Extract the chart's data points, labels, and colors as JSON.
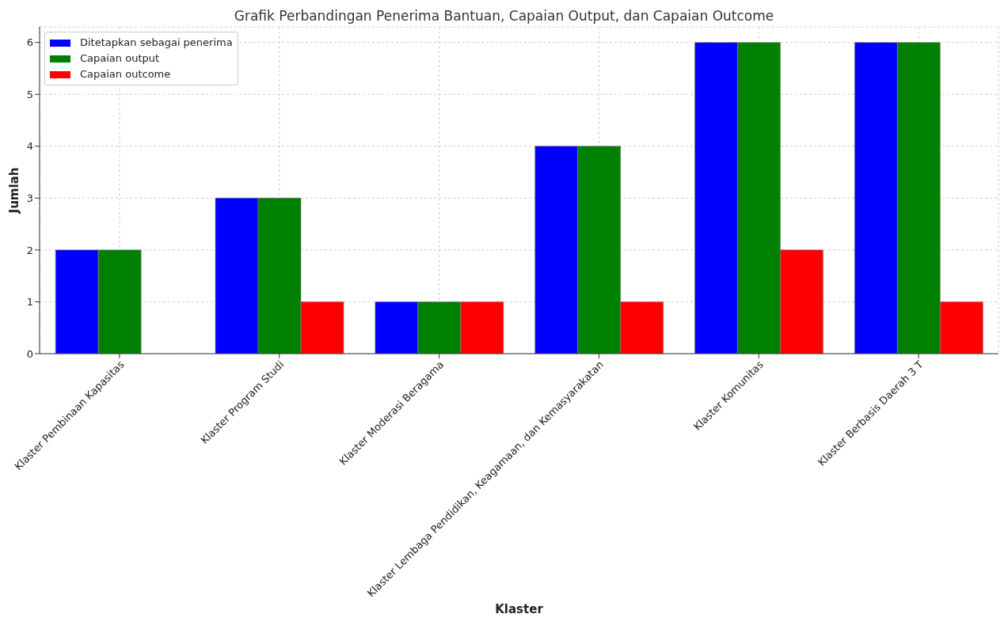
{
  "chart_data": {
    "type": "bar",
    "title": "Grafik Perbandingan Penerima Bantuan, Capaian Output, dan Capaian Outcome",
    "xlabel": "Klaster",
    "ylabel": "Jumlah",
    "categories": [
      "Klaster Pembinaan Kapasitas",
      "Klaster Program Studi",
      "Klaster Moderasi Beragama",
      "Klaster Lembaga Pendidikan, Keagamaan, dan Kemasyarakatan",
      "Klaster Komunitas",
      "Klaster Berbasis Daerah 3 T"
    ],
    "series": [
      {
        "name": "Ditetapkan sebagai penerima",
        "color": "#0000ff",
        "values": [
          2,
          3,
          1,
          4,
          6,
          6
        ]
      },
      {
        "name": "Capaian output",
        "color": "#008000",
        "values": [
          2,
          3,
          1,
          4,
          6,
          6
        ]
      },
      {
        "name": "Capaian outcome",
        "color": "#ff0000",
        "values": [
          0,
          1,
          1,
          1,
          2,
          1
        ]
      }
    ],
    "ylim": [
      0,
      6.3
    ],
    "yticks": [
      0,
      1,
      2,
      3,
      4,
      5,
      6
    ],
    "grid": true,
    "legend": "top left"
  }
}
